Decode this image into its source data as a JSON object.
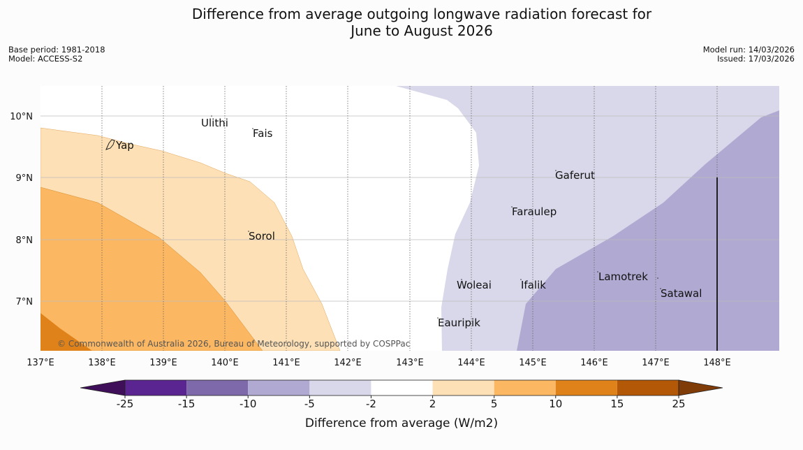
{
  "title": {
    "line1": "Difference from average outgoing longwave radiation forecast for",
    "line2": "June to August 2026"
  },
  "meta_left": {
    "base_period": "Base period: 1981-2018",
    "model": "Model: ACCESS-S2"
  },
  "meta_right": {
    "model_run": "Model run: 14/03/2026",
    "issued": "Issued: 17/03/2026"
  },
  "map": {
    "lon_labels": [
      "137°E",
      "138°E",
      "139°E",
      "140°E",
      "141°E",
      "142°E",
      "143°E",
      "144°E",
      "145°E",
      "146°E",
      "147°E",
      "148°E"
    ],
    "lat_labels": [
      "10°N",
      "9°N",
      "8°N",
      "7°N"
    ],
    "places": [
      "Ulithi",
      "Fais",
      "Yap",
      "Sorol",
      "Gaferut",
      "Faraulep",
      "Woleai",
      "Ifalik",
      "Lamotrek",
      "Satawal",
      "Eauripik"
    ],
    "copyright": "© Commonwealth of Australia 2026, Bureau of Meteorology, supported by COSPPac"
  },
  "colorbar": {
    "ticks": [
      "-25",
      "-15",
      "-10",
      "-5",
      "-2",
      "2",
      "5",
      "10",
      "15",
      "25"
    ],
    "colors": [
      "#3f0f59",
      "#5a2590",
      "#7e6aaa",
      "#b0a9d2",
      "#d8d8ea",
      "#ffffff",
      "#fde0b5",
      "#fbb762",
      "#e0821a",
      "#b35806",
      "#7f3b08"
    ],
    "label": "Difference from average (W/m2)"
  }
}
